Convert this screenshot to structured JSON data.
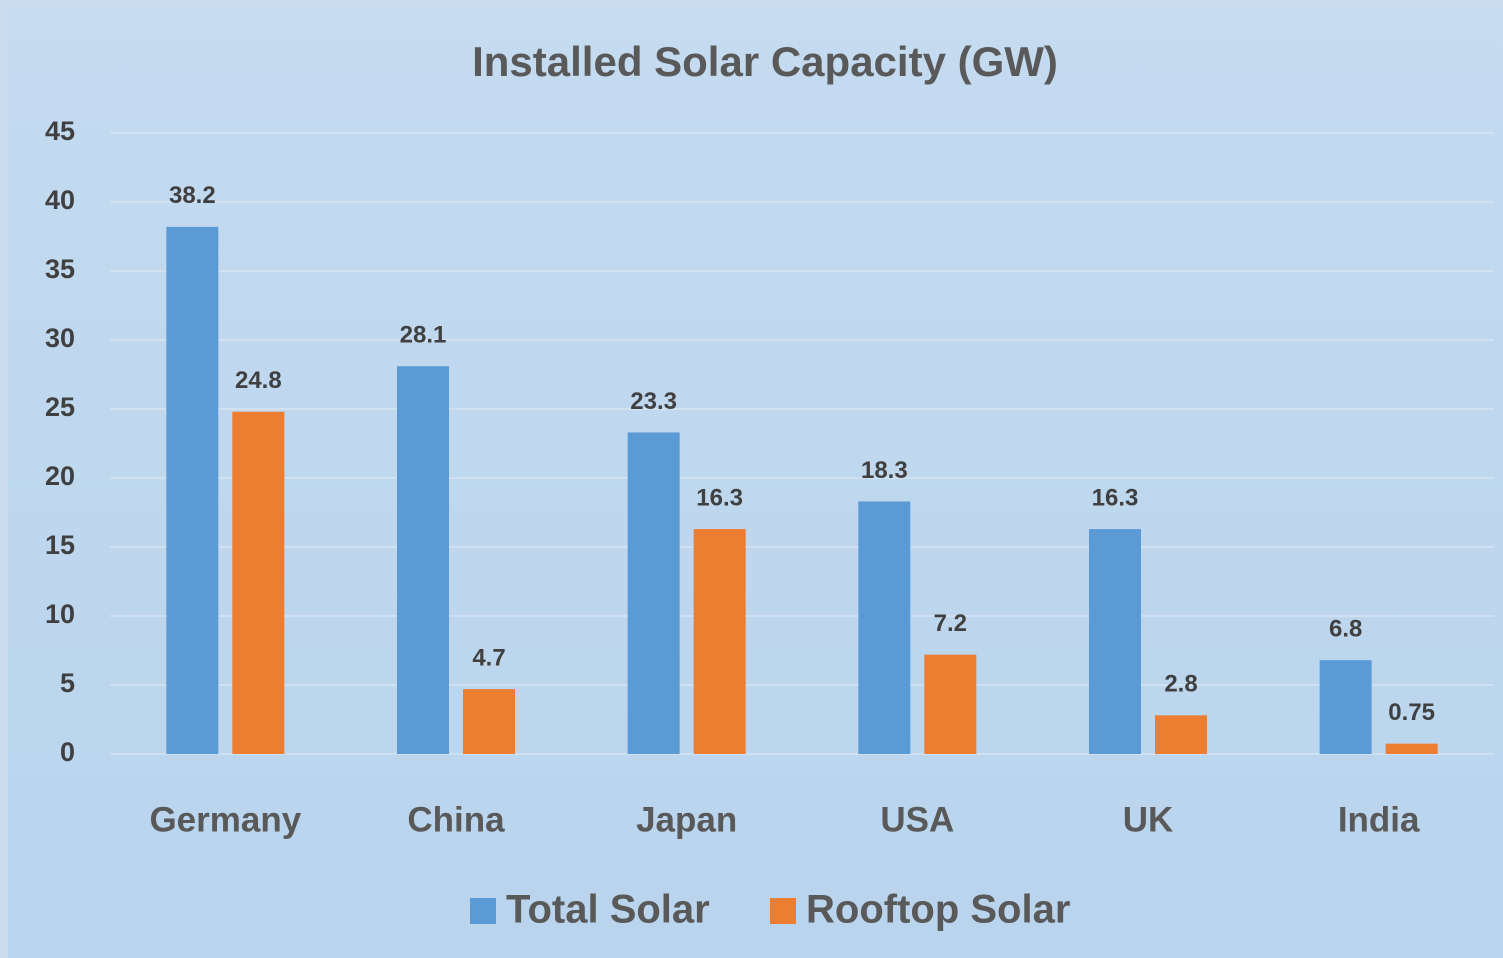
{
  "chart_data": {
    "type": "bar",
    "title": "Installed Solar Capacity (GW)",
    "categories": [
      "Germany",
      "China",
      "Japan",
      "USA",
      "UK",
      "India"
    ],
    "series": [
      {
        "name": "Total Solar",
        "color": "#5b9bd5",
        "values": [
          38.2,
          28.1,
          23.3,
          18.3,
          16.3,
          6.8
        ]
      },
      {
        "name": "Rooftop Solar",
        "color": "#ed7d31",
        "values": [
          24.8,
          4.7,
          16.3,
          7.2,
          2.8,
          0.75
        ]
      }
    ],
    "ylim": [
      0,
      45
    ],
    "yticks": [
      0,
      5,
      10,
      15,
      20,
      25,
      30,
      35,
      40,
      45
    ],
    "grid": true,
    "legend": "bottom"
  }
}
